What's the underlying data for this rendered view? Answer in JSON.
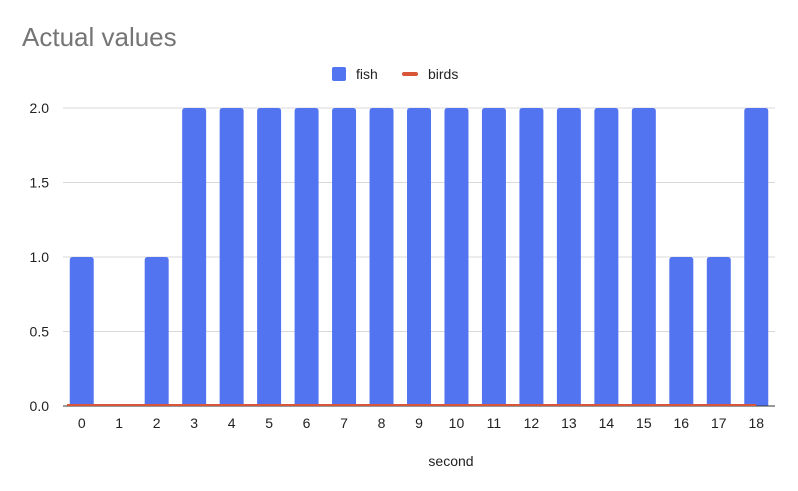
{
  "chart_data": {
    "type": "bar",
    "title": "Actual values",
    "xlabel": "second",
    "ylabel": "",
    "categories": [
      "0",
      "1",
      "2",
      "3",
      "4",
      "5",
      "6",
      "7",
      "8",
      "9",
      "10",
      "11",
      "12",
      "13",
      "14",
      "15",
      "16",
      "17",
      "18"
    ],
    "series": [
      {
        "name": "fish",
        "kind": "bar",
        "color": "#5274f1",
        "values": [
          1,
          0,
          1,
          2,
          2,
          2,
          2,
          2,
          2,
          2,
          2,
          2,
          2,
          2,
          2,
          2,
          1,
          1,
          2
        ]
      },
      {
        "name": "birds",
        "kind": "line",
        "color": "#d9553a",
        "values": [
          0,
          0,
          0,
          0,
          0,
          0,
          0,
          0,
          0,
          0,
          0,
          0,
          0,
          0,
          0,
          0,
          0,
          0,
          0
        ]
      }
    ],
    "ylim": [
      0,
      2
    ],
    "yticks": [
      "0.0",
      "0.5",
      "1.0",
      "1.5",
      "2.0"
    ],
    "grid": true,
    "legend_position": "top-center"
  }
}
